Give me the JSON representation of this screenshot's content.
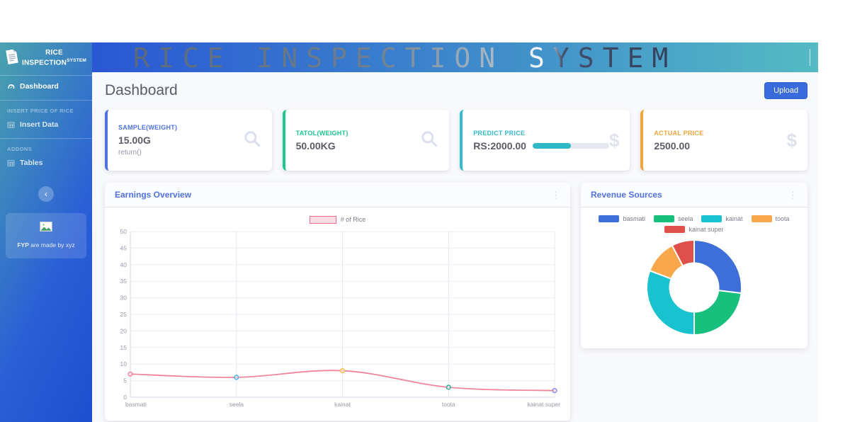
{
  "colors": {
    "sidebar_gradient_start": "#4aa3ae",
    "sidebar_gradient_end": "#1c4fd0",
    "topbar_gradient_start": "#2a57d4",
    "topbar_gradient_end": "#55bac4",
    "content_bg": "#f8f9fc",
    "card_title_blue": "#4e73df",
    "upload_blue": "#3a6bdc"
  },
  "sidebar": {
    "brand": {
      "line1": "RICE",
      "line2": "INSPECTION",
      "sup": "SYSTEM",
      "icon": "paper-logo-icon"
    },
    "headings": [
      "INSERT PRICE OF RICE",
      "ADDONS"
    ],
    "items": [
      {
        "label": "Dashboard",
        "icon": "tachometer-icon",
        "active": true
      },
      {
        "label": "Insert Data",
        "icon": "table-icon",
        "active": false
      },
      {
        "label": "Tables",
        "icon": "table-icon",
        "active": false
      }
    ],
    "toggle_glyph": "‹",
    "promo": {
      "bold": "FYP",
      "rest": " are made by xyz",
      "icon": "broken-image-icon"
    }
  },
  "topbar": {
    "title": "RICE INSPECTION SYSTEM"
  },
  "page": {
    "title": "Dashboard",
    "upload_button": "Upload"
  },
  "stat_cards": [
    {
      "label": "SAMPLE(WEIGHT)",
      "value": "15.00G",
      "subtext": "return()",
      "icon": "search-icon",
      "accent": "#4e73df"
    },
    {
      "label": "TATOL(WEIGHT)",
      "value": "50.00KG",
      "icon": "search-icon",
      "accent": "#1cc88a"
    },
    {
      "label": "PREDICT PRICE",
      "value": "RS:2000.00",
      "icon": "dollar-icon",
      "accent": "#36b9cc",
      "progress_percent": 50
    },
    {
      "label": "ACTUAL PRICE",
      "value": "2500.00",
      "icon": "dollar-icon",
      "accent": "#f0a63e"
    }
  ],
  "chart_data": [
    {
      "type": "line",
      "title": "Earnings Overview",
      "legend": [
        "# of Rice"
      ],
      "legend_position": "top",
      "categories": [
        "basmati",
        "seela",
        "kainat",
        "toota",
        "kainat super"
      ],
      "values": [
        7,
        6,
        8,
        3,
        2
      ],
      "ylim": [
        0,
        50
      ],
      "ytick_step": 5,
      "grid": true,
      "line_color": "#f0849b",
      "legend_fill": "#fcdde5",
      "legend_border": "#ef6d8d",
      "point_colors": [
        "#f387a0",
        "#5db2e8",
        "#f7c15f",
        "#3fae9e",
        "#9d8bec"
      ]
    },
    {
      "type": "pie",
      "donut": true,
      "title": "Revenue Sources",
      "legend_position": "top",
      "labels": [
        "basmati",
        "seela",
        "kainat",
        "toota",
        "kainat super"
      ],
      "values": [
        7,
        6,
        8,
        3,
        2
      ],
      "colors": [
        "#3e6fd9",
        "#18c07e",
        "#19c2cf",
        "#f9a74b",
        "#e0504b"
      ]
    }
  ]
}
